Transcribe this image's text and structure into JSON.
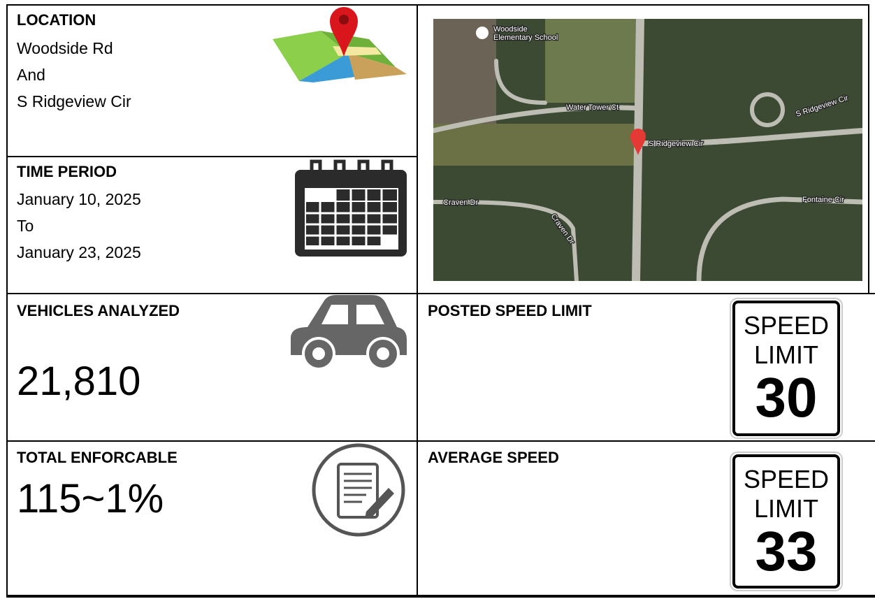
{
  "location": {
    "heading": "LOCATION",
    "lines": [
      "Woodside Rd",
      "And",
      "S Ridgeview Cir"
    ]
  },
  "time_period": {
    "heading": "TIME PERIOD",
    "lines": [
      "January 10, 2025",
      "To",
      "January 23, 2025"
    ]
  },
  "map": {
    "labels": [
      "Woodside",
      "Elementary School",
      "Water Tower Ct",
      "S Ridgeview Cir",
      "S Ridgeview Cir",
      "Craven Dr",
      "Craven Dr",
      "Fontaine Cir"
    ]
  },
  "vehicles_analyzed": {
    "heading": "VEHICLES ANALYZED",
    "value": "21,810"
  },
  "total_enforcable": {
    "heading": "TOTAL ENFORCABLE",
    "value": "115~1%"
  },
  "posted_speed_limit": {
    "heading": "POSTED SPEED LIMIT",
    "sign": [
      "SPEED",
      "LIMIT",
      "30"
    ]
  },
  "average_speed": {
    "heading": "AVERAGE SPEED",
    "sign": [
      "SPEED",
      "LIMIT",
      "33"
    ]
  }
}
